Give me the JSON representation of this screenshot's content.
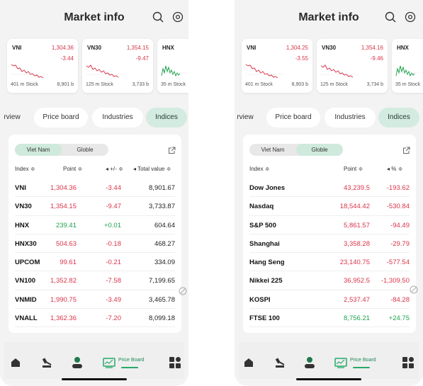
{
  "left": {
    "header": {
      "title": "Market info"
    },
    "cards": [
      {
        "name": "VNI",
        "value": "1,304.36",
        "change": "-3.44",
        "stocks": "401 m Stock",
        "volume": "8,901 b"
      },
      {
        "name": "VN30",
        "value": "1,354.15",
        "change": "-9.47",
        "stocks": "125 m Stock",
        "volume": "3,733 b"
      },
      {
        "name": "HNX",
        "value": "",
        "change": "",
        "stocks": "35 m Stock",
        "volume": ""
      }
    ],
    "tabs": [
      "rview",
      "Price board",
      "Industries",
      "Indices"
    ],
    "segment": [
      "Viet Nam",
      "Globle"
    ],
    "columns": {
      "index": "Index ≑",
      "point": "Point ≑",
      "change": "+/- ≑",
      "total": "Total value ≑"
    },
    "rows": [
      {
        "name": "VNI",
        "point": "1,304.36",
        "change": "-3.44",
        "total": "8,901.67",
        "dir": "down"
      },
      {
        "name": "VN30",
        "point": "1,354.15",
        "change": "-9.47",
        "total": "3,733.87",
        "dir": "down"
      },
      {
        "name": "HNX",
        "point": "239.41",
        "change": "+0.01",
        "total": "604.64",
        "dir": "up"
      },
      {
        "name": "HNX30",
        "point": "504.63",
        "change": "-0.18",
        "total": "468.27",
        "dir": "down"
      },
      {
        "name": "UPCOM",
        "point": "99.61",
        "change": "-0.21",
        "total": "334.09",
        "dir": "down"
      },
      {
        "name": "VN100",
        "point": "1,352.82",
        "change": "-7.58",
        "total": "7,199.65",
        "dir": "down"
      },
      {
        "name": "VNMID",
        "point": "1,990.75",
        "change": "-3.49",
        "total": "3,465.78",
        "dir": "down"
      },
      {
        "name": "VNALL",
        "point": "1,362.36",
        "change": "-7.20",
        "total": "8,099.18",
        "dir": "down"
      }
    ],
    "nav": {
      "price_board_label": "Price Board"
    }
  },
  "right": {
    "header": {
      "title": "Market info"
    },
    "cards": [
      {
        "name": "VNI",
        "value": "1,304.25",
        "change": "-3.55",
        "stocks": "401 m Stock",
        "volume": "8,903 b"
      },
      {
        "name": "VN30",
        "value": "1,354.16",
        "change": "-9.46",
        "stocks": "125 m Stock",
        "volume": "3,734 b"
      },
      {
        "name": "HNX",
        "value": "",
        "change": "",
        "stocks": "35 m Stock",
        "volume": ""
      }
    ],
    "tabs": [
      "rview",
      "Price board",
      "Industries",
      "Indices"
    ],
    "segment": [
      "Viet Nam",
      "Globle"
    ],
    "columns": {
      "index": "Index ≑",
      "point": "Point ≑",
      "pct": "% ≑"
    },
    "rows": [
      {
        "name": "Dow Jones",
        "point": "43,239.5",
        "pct": "-193.62",
        "dir": "down"
      },
      {
        "name": "Nasdaq",
        "point": "18,544.42",
        "pct": "-530.84",
        "dir": "down"
      },
      {
        "name": "S&P 500",
        "point": "5,861.57",
        "pct": "-94.49",
        "dir": "down"
      },
      {
        "name": "Shanghai",
        "point": "3,358.28",
        "pct": "-29.79",
        "dir": "down"
      },
      {
        "name": "Hang Seng",
        "point": "23,140.75",
        "pct": "-577.54",
        "dir": "down"
      },
      {
        "name": "Nikkei 225",
        "point": "36,952.5",
        "pct": "-1,309.50",
        "dir": "down"
      },
      {
        "name": "KOSPI",
        "point": "2,537.47",
        "pct": "-84.28",
        "dir": "down"
      },
      {
        "name": "FTSE 100",
        "point": "8,756.21",
        "pct": "+24.75",
        "dir": "up"
      }
    ],
    "nav": {
      "price_board_label": "Price Board"
    }
  },
  "colors": {
    "up": "#1ea34c",
    "down": "#d8354a",
    "accent": "#26a96a",
    "active_tab": "#d4ebe1"
  },
  "icons": [
    "search-icon",
    "settings-icon",
    "export-icon",
    "home-icon",
    "auction-icon",
    "user-icon",
    "price-board-icon",
    "apps-icon"
  ]
}
